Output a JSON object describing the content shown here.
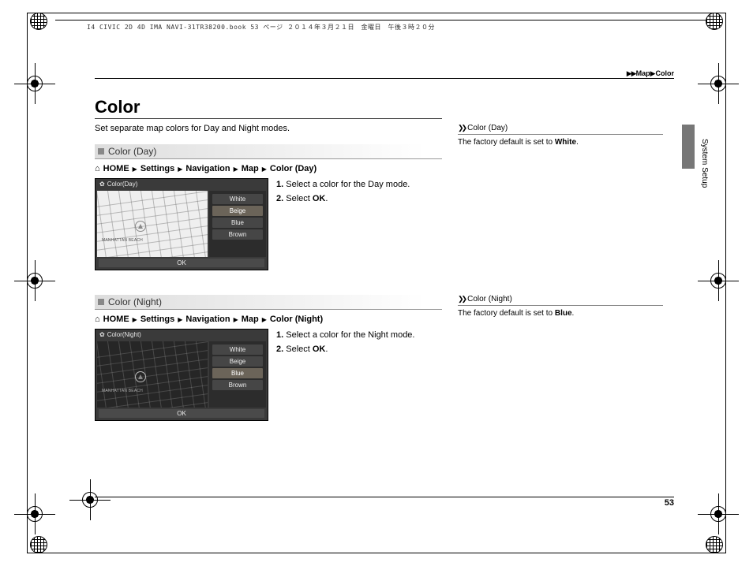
{
  "header": {
    "job_text": "I4 CIVIC 2D 4D IMA NAVI-31TR38200.book  53 ページ  ２０１４年３月２１日　金曜日　午後３時２０分"
  },
  "breadcrumb": {
    "arrows": "▶▶",
    "part1": "Map",
    "part2": "Color"
  },
  "title": "Color",
  "intro": "Set separate map colors for Day and Night modes.",
  "sections": [
    {
      "heading": "Color (Day)",
      "path": [
        "HOME",
        "Settings",
        "Navigation",
        "Map",
        "Color (Day)"
      ],
      "scr_title": "Color(Day)",
      "mode": "day",
      "map_label": "MANHATTAN BEACH",
      "options": [
        "White",
        "Beige",
        "Blue",
        "Brown"
      ],
      "selected": "Beige",
      "ok": "OK",
      "steps": [
        {
          "n": "1.",
          "t": "Select a color for the Day mode."
        },
        {
          "n": "2.",
          "t": "Select ",
          "b": "OK",
          "after": "."
        }
      ]
    },
    {
      "heading": "Color (Night)",
      "path": [
        "HOME",
        "Settings",
        "Navigation",
        "Map",
        "Color (Night)"
      ],
      "scr_title": "Color(Night)",
      "mode": "night",
      "map_label": "MANHATTAN BEACH",
      "options": [
        "White",
        "Beige",
        "Blue",
        "Brown"
      ],
      "selected": "Blue",
      "ok": "OK",
      "steps": [
        {
          "n": "1.",
          "t": "Select a color for the Night mode."
        },
        {
          "n": "2.",
          "t": "Select ",
          "b": "OK",
          "after": "."
        }
      ]
    }
  ],
  "side_notes": [
    {
      "hdr": "Color (Day)",
      "pre": "The factory default is set to ",
      "b": "White",
      "post": "."
    },
    {
      "hdr": "Color (Night)",
      "pre": "The factory default is set to ",
      "b": "Blue",
      "post": "."
    }
  ],
  "side_caption": "System Setup",
  "page_number": "53",
  "colors": {
    "section_grad_start": "#dcdcdc",
    "opt_bg": "#464646",
    "opt_sel": "#6b6459",
    "side_tab": "#777777"
  }
}
